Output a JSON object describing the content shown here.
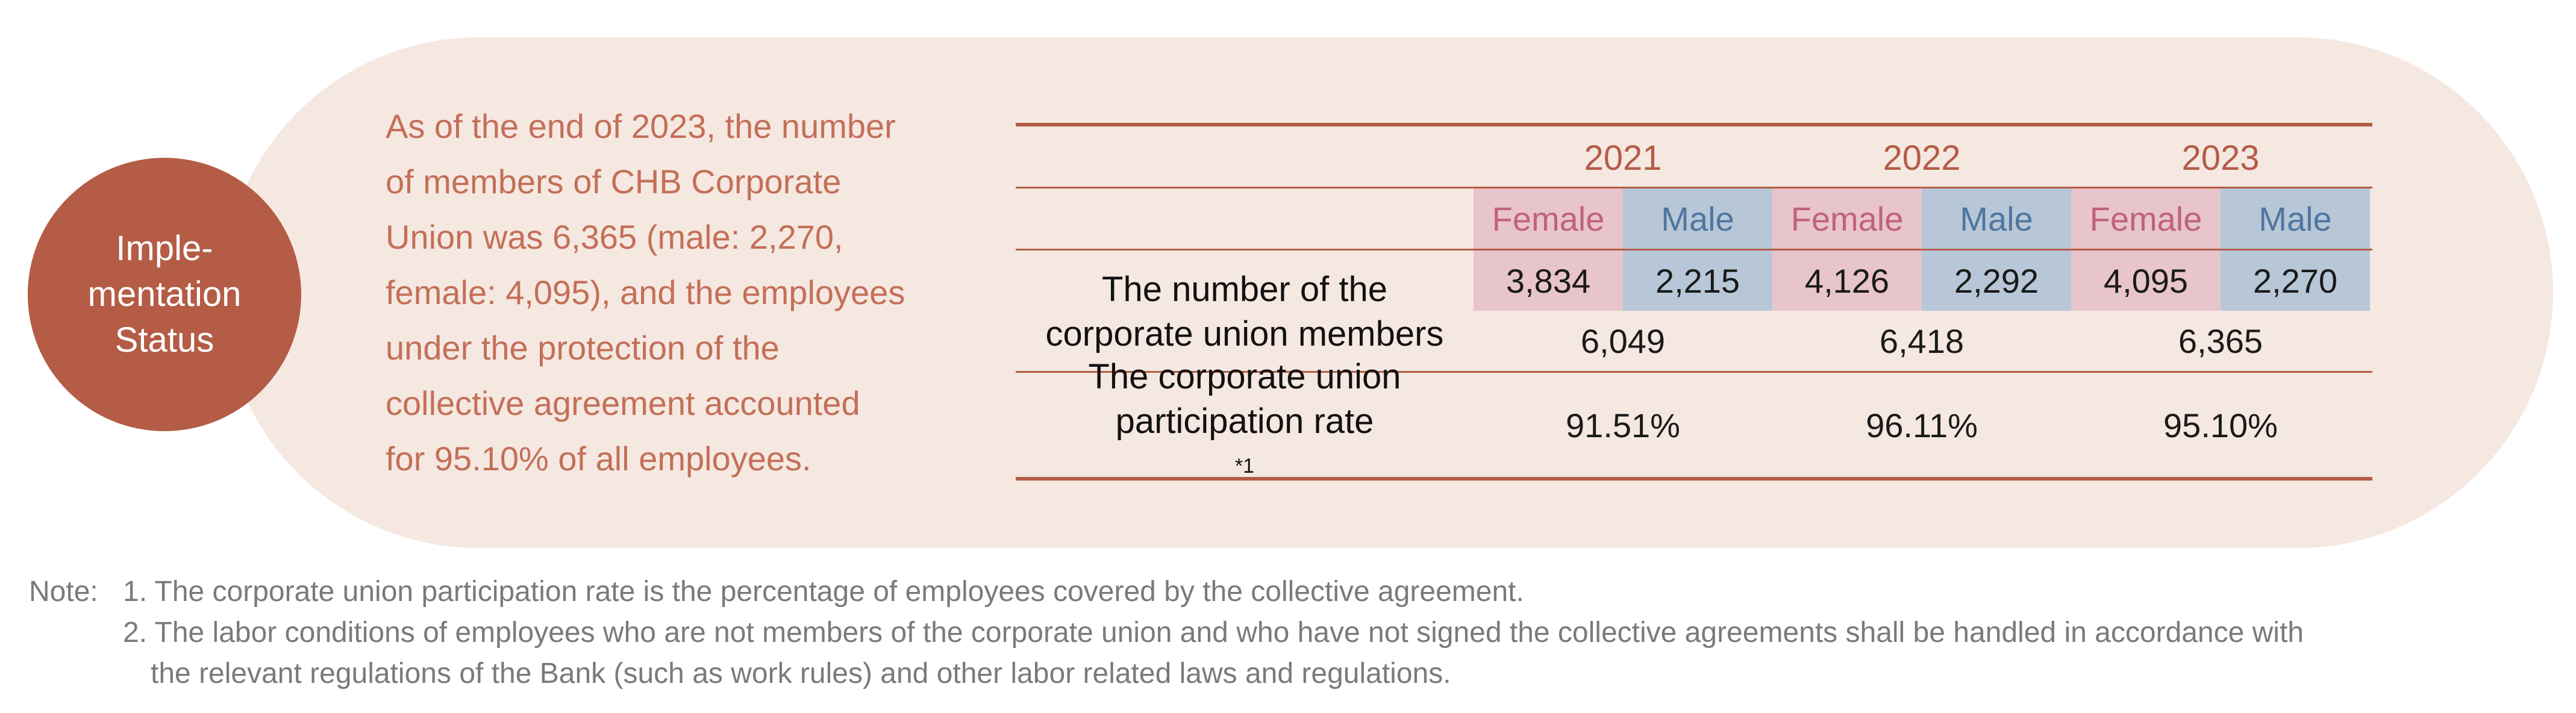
{
  "status_badge": {
    "lines": [
      "Imple-",
      "mentation",
      "Status"
    ]
  },
  "intro_lines": [
    "As of the end of 2023, the number",
    "of members of CHB Corporate",
    "Union was 6,365 (male: 2,270,",
    "female: 4,095), and the employees",
    "under the protection of the",
    "collective agreement accounted",
    "for 95.10% of all employees."
  ],
  "table": {
    "years": [
      "2021",
      "2022",
      "2023"
    ],
    "female_label": "Female",
    "male_label": "Male",
    "members_label_lines": [
      "The number of the",
      "corporate union members"
    ],
    "members_by_gender": [
      {
        "female": "3,834",
        "male": "2,215"
      },
      {
        "female": "4,126",
        "male": "2,292"
      },
      {
        "female": "4,095",
        "male": "2,270"
      }
    ],
    "members_totals": [
      "6,049",
      "6,418",
      "6,365"
    ],
    "rate_label_lines": [
      "The corporate union",
      "participation rate"
    ],
    "rate_footnote_mark": "*1",
    "rates": [
      "91.51%",
      "96.11%",
      "95.10%"
    ]
  },
  "notes": {
    "prefix": "Note:",
    "items": [
      "1. The corporate union participation rate is the percentage of employees covered by the collective agreement.",
      "2. The labor conditions of employees who are not members of the corporate union and who have not signed the collective agreements shall be handled in accordance with",
      "the relevant regulations of the Bank (such as work rules) and other labor related laws and regulations."
    ]
  },
  "colors": {
    "accent": "#b45c46",
    "panel_bg": "#f5e8e1",
    "female_bg": "#e8c4cb",
    "male_bg": "#b7c7d7"
  }
}
